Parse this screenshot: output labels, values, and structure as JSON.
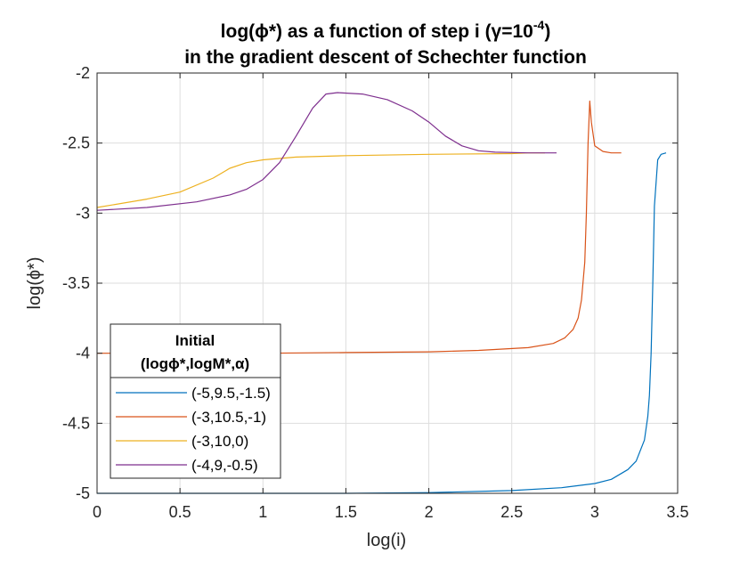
{
  "chart_data": {
    "type": "line",
    "title_line1": "log(ϕ*) as a function of step i (γ=10",
    "title_sup": "-4",
    "title_line1_end": ")",
    "title_line2": "in the gradient descent of Schechter function",
    "xlabel": "log(i)",
    "ylabel": "log(ϕ*)",
    "xlim": [
      0,
      3.5
    ],
    "ylim": [
      -5,
      -2
    ],
    "xticks": [
      0,
      0.5,
      1,
      1.5,
      2,
      2.5,
      3,
      3.5
    ],
    "xtick_labels": [
      "0",
      "0.5",
      "1",
      "1.5",
      "2",
      "2.5",
      "3",
      "3.5"
    ],
    "yticks": [
      -5,
      -4.5,
      -4,
      -3.5,
      -3,
      -2.5,
      -2
    ],
    "ytick_labels": [
      "-5",
      "-4.5",
      "-4",
      "-3.5",
      "-3",
      "-2.5",
      "-2"
    ],
    "grid": true,
    "legend": {
      "title_line1": "Initial",
      "title_line2": "(logϕ*,logM*,α)",
      "placement": "bottom-left"
    },
    "series": [
      {
        "name": "(-5,9.5,-1.5)",
        "color": "#0072BD",
        "x": [
          0,
          0.5,
          1,
          1.5,
          2,
          2.5,
          2.8,
          3.0,
          3.1,
          3.2,
          3.25,
          3.3,
          3.32,
          3.33,
          3.34,
          3.35,
          3.36,
          3.38,
          3.4,
          3.43
        ],
        "y": [
          -5.0,
          -5.0,
          -5.0,
          -5.0,
          -4.995,
          -4.98,
          -4.96,
          -4.93,
          -4.9,
          -4.83,
          -4.77,
          -4.62,
          -4.45,
          -4.3,
          -4.0,
          -3.5,
          -2.95,
          -2.62,
          -2.58,
          -2.57
        ]
      },
      {
        "name": "(-3,10.5,-1)",
        "color": "#D95319",
        "x": [
          0,
          0.5,
          1,
          1.5,
          2,
          2.3,
          2.6,
          2.75,
          2.82,
          2.87,
          2.9,
          2.92,
          2.94,
          2.95,
          2.96,
          2.97,
          2.98,
          3.0,
          3.05,
          3.1,
          3.16
        ],
        "y": [
          -4.0,
          -4.0,
          -4.0,
          -3.995,
          -3.99,
          -3.98,
          -3.96,
          -3.93,
          -3.89,
          -3.83,
          -3.75,
          -3.62,
          -3.35,
          -3.0,
          -2.5,
          -2.2,
          -2.35,
          -2.52,
          -2.56,
          -2.57,
          -2.57
        ]
      },
      {
        "name": "(-3,10,0)",
        "color": "#EDB120",
        "x": [
          0,
          0.3,
          0.5,
          0.7,
          0.8,
          0.9,
          1.0,
          1.2,
          1.5,
          2.0,
          2.5,
          2.6,
          2.7
        ],
        "y": [
          -2.96,
          -2.9,
          -2.85,
          -2.75,
          -2.68,
          -2.64,
          -2.62,
          -2.6,
          -2.59,
          -2.58,
          -2.575,
          -2.57,
          -2.57
        ]
      },
      {
        "name": "(-4,9,-0.5)",
        "color": "#7E2F8E",
        "x": [
          0,
          0.3,
          0.6,
          0.8,
          0.9,
          1.0,
          1.1,
          1.2,
          1.3,
          1.38,
          1.45,
          1.6,
          1.75,
          1.9,
          2.0,
          2.1,
          2.2,
          2.3,
          2.4,
          2.6,
          2.77
        ],
        "y": [
          -2.98,
          -2.96,
          -2.92,
          -2.87,
          -2.83,
          -2.76,
          -2.64,
          -2.45,
          -2.25,
          -2.15,
          -2.14,
          -2.15,
          -2.19,
          -2.27,
          -2.35,
          -2.45,
          -2.52,
          -2.555,
          -2.565,
          -2.57,
          -2.57
        ]
      }
    ]
  }
}
